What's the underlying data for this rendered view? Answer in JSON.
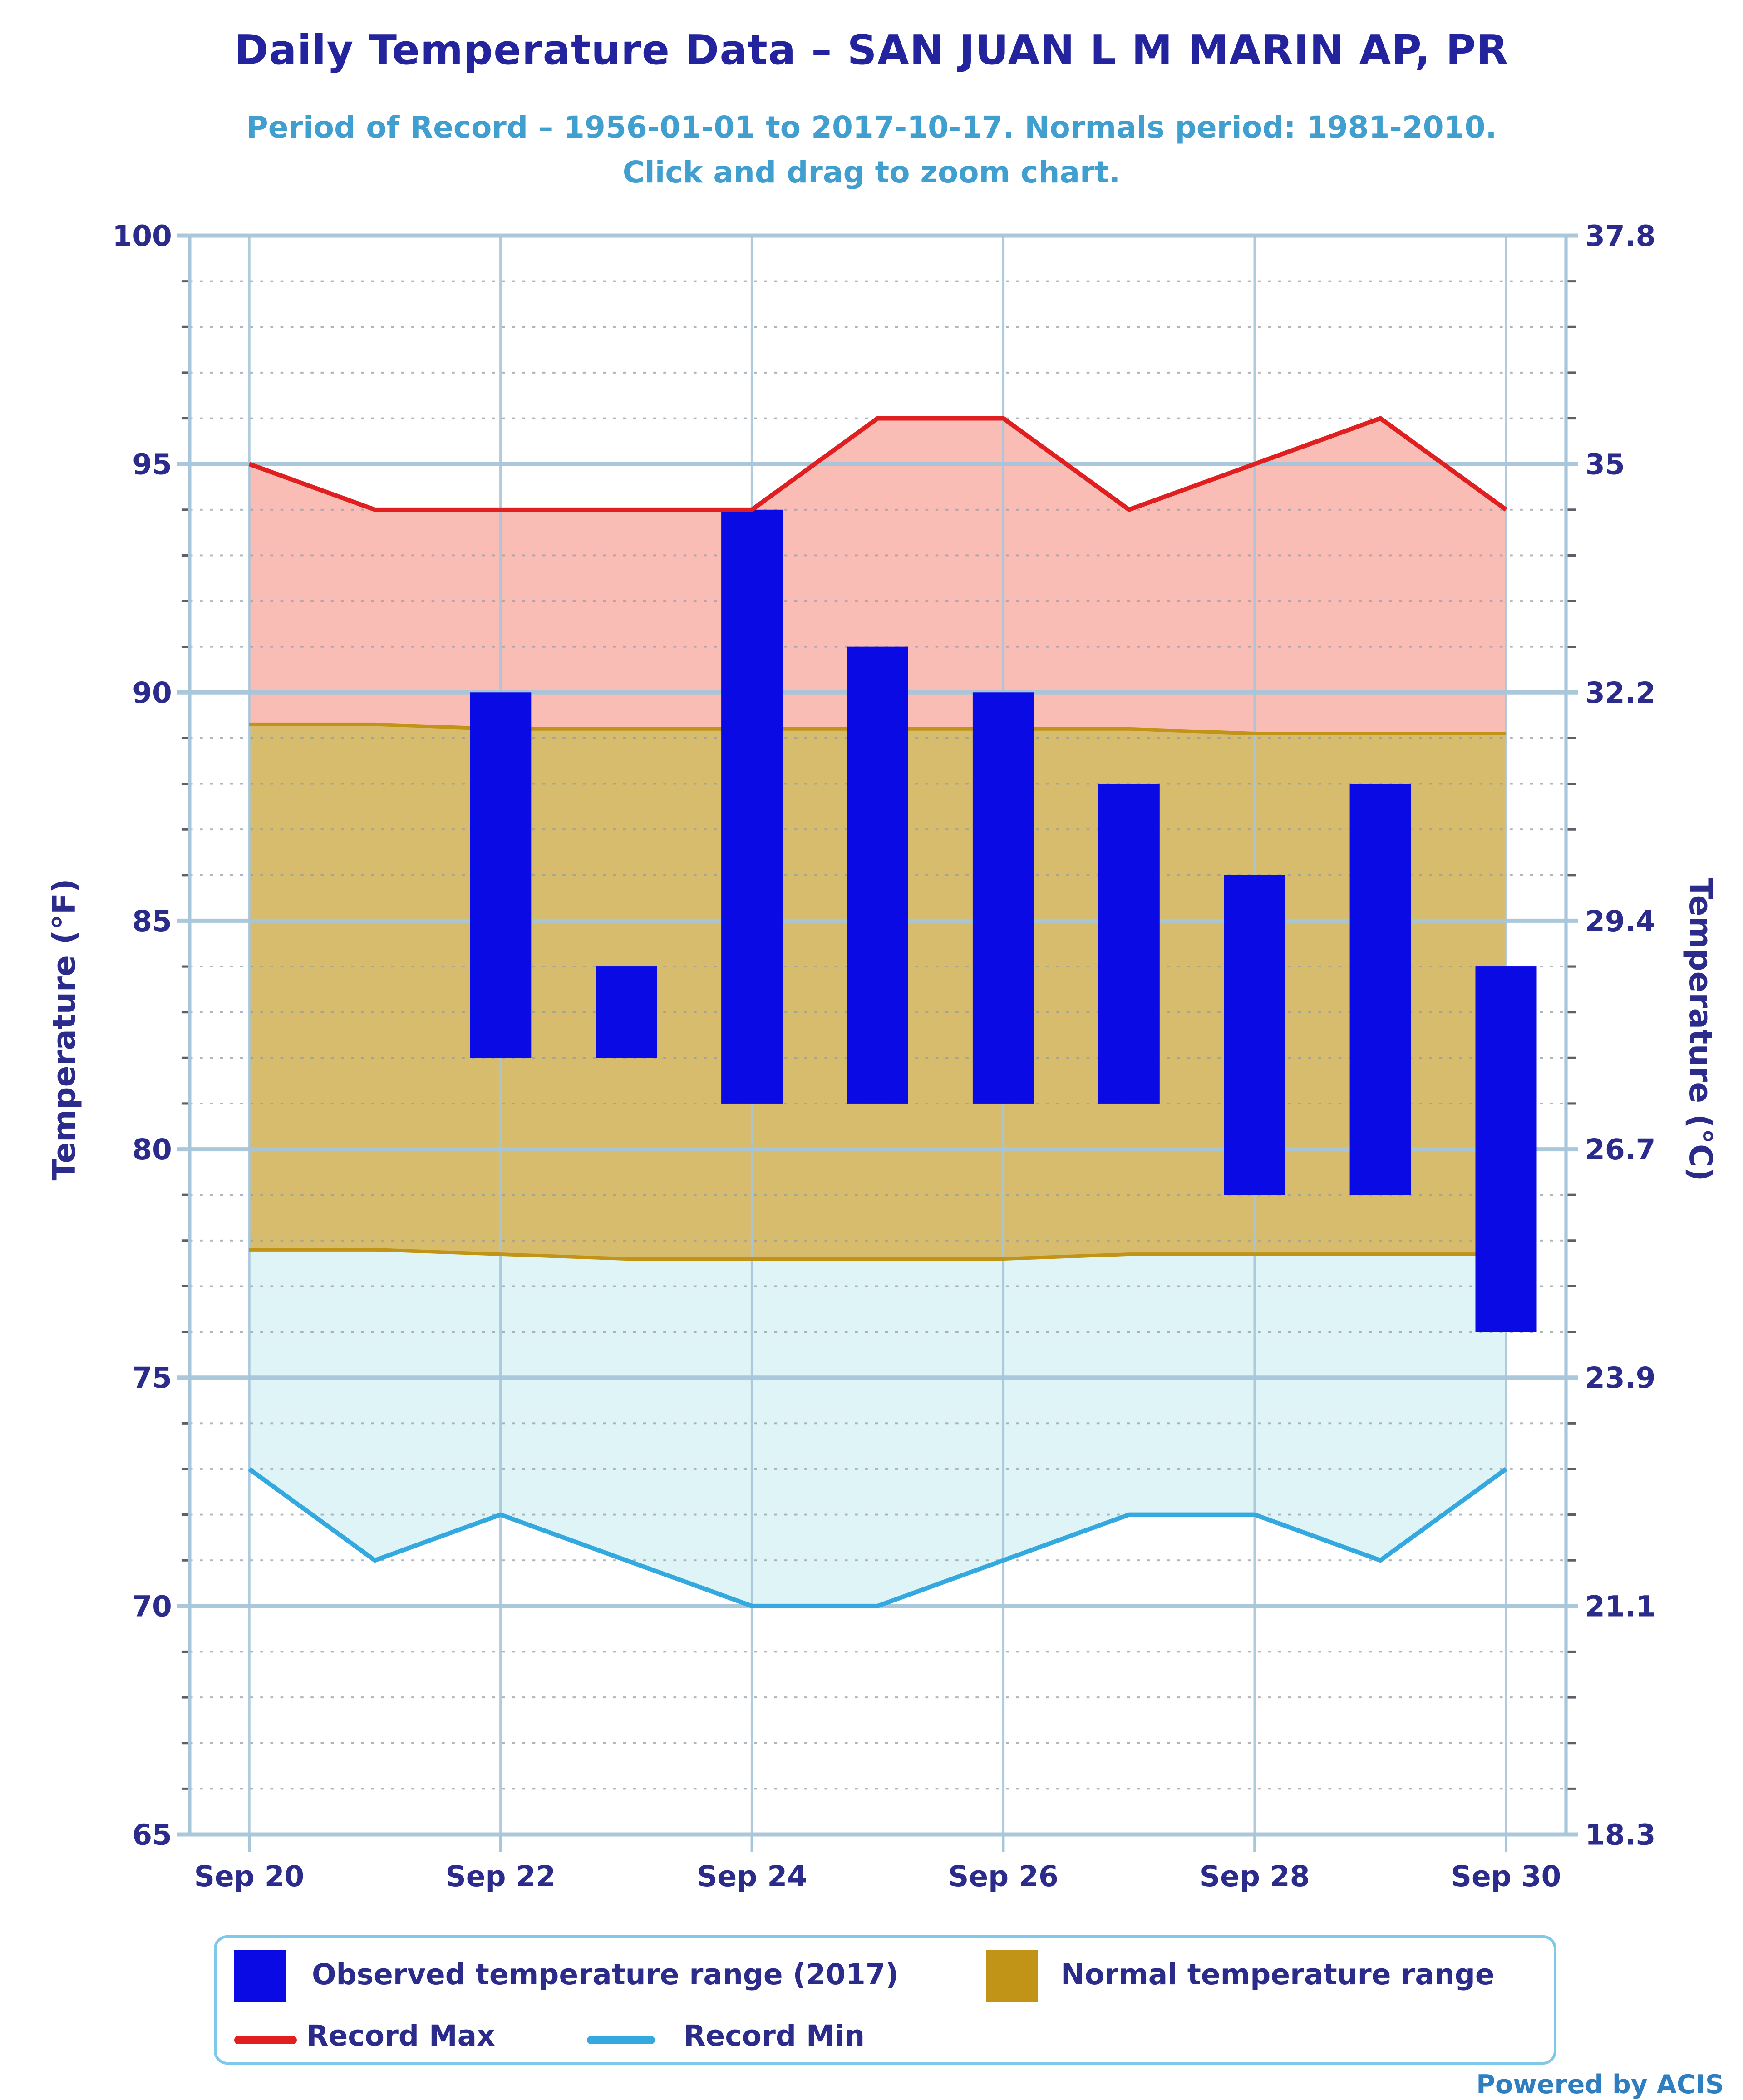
{
  "header": {
    "title": "Daily Temperature Data – SAN JUAN L M MARIN AP, PR",
    "subtitle": "Period of Record – 1956-01-01 to 2017-10-17. Normals period: 1981-2010.",
    "subtitle2": "Click and drag to zoom chart."
  },
  "axes": {
    "left_title": "Temperature (°F)",
    "right_title": "Temperature (°C)"
  },
  "legend": {
    "observed": "Observed temperature range (2017)",
    "normal": "Normal temperature range",
    "record_max": "Record Max",
    "record_min": "Record Min"
  },
  "footer": {
    "powered_by": "Powered by ACIS"
  },
  "colors": {
    "title_navy": "#23239e",
    "label_navy": "#2b2b8c",
    "subtitle_blue": "#419fd0",
    "bar_blue": "#0a0ae4",
    "record_max_line": "#e02020",
    "record_max_fill": "#f9bdb6",
    "normal_fill": "#d8bc6e",
    "normal_border": "#c19417",
    "record_min_line": "#33a9e0",
    "record_min_fill": "#def4f6",
    "grid_major": "#a7c6da",
    "grid_minor_dot": "#939ea8",
    "tick_dark": "#44444f",
    "legend_border": "#7ec8ea",
    "powered_blue": "#2f7fc0"
  },
  "chart_data": {
    "type": "combo: bar-ranges + area bands + lines",
    "title": "Daily Temperature Data – SAN JUAN L M MARIN AP, PR",
    "x": [
      "Sep 20",
      "Sep 21",
      "Sep 22",
      "Sep 23",
      "Sep 24",
      "Sep 25",
      "Sep 26",
      "Sep 27",
      "Sep 28",
      "Sep 29",
      "Sep 30"
    ],
    "xtick_days": [
      0,
      2,
      4,
      6,
      8,
      10
    ],
    "xtick_labels": [
      "Sep 20",
      "Sep 22",
      "Sep 24",
      "Sep 26",
      "Sep 28",
      "Sep 30"
    ],
    "ylim_f": [
      65,
      100
    ],
    "f_ticks": [
      100,
      95,
      90,
      85,
      80,
      75,
      70,
      65
    ],
    "c_tick_labels": [
      "37.8",
      "35",
      "32.2",
      "29.4",
      "26.7",
      "23.9",
      "21.1",
      "18.3"
    ],
    "grid": "major solid lines every 5°F, dotted minor lines every 1°F, vertical lines every 2 days",
    "legend_position": "bottom",
    "series": [
      {
        "name": "Observed temperature range (2017)",
        "type": "bar-range",
        "low": [
          null,
          null,
          82,
          82,
          81,
          81,
          81,
          81,
          79,
          79,
          76
        ],
        "high": [
          null,
          null,
          90,
          84,
          94,
          91,
          90,
          88,
          86,
          88,
          84
        ]
      },
      {
        "name": "Normal temperature range",
        "type": "area-range",
        "low": [
          77.8,
          77.8,
          77.7,
          77.6,
          77.6,
          77.6,
          77.6,
          77.7,
          77.7,
          77.7,
          77.7
        ],
        "high": [
          89.3,
          89.3,
          89.2,
          89.2,
          89.2,
          89.2,
          89.2,
          89.2,
          89.1,
          89.1,
          89.1
        ]
      },
      {
        "name": "Record Max",
        "type": "line",
        "values": [
          95,
          94,
          94,
          94,
          94,
          96,
          96,
          94,
          95,
          96,
          94
        ]
      },
      {
        "name": "Record Min",
        "type": "line",
        "values": [
          73,
          71,
          72,
          71,
          70,
          70,
          71,
          72,
          72,
          71,
          73
        ]
      }
    ]
  }
}
